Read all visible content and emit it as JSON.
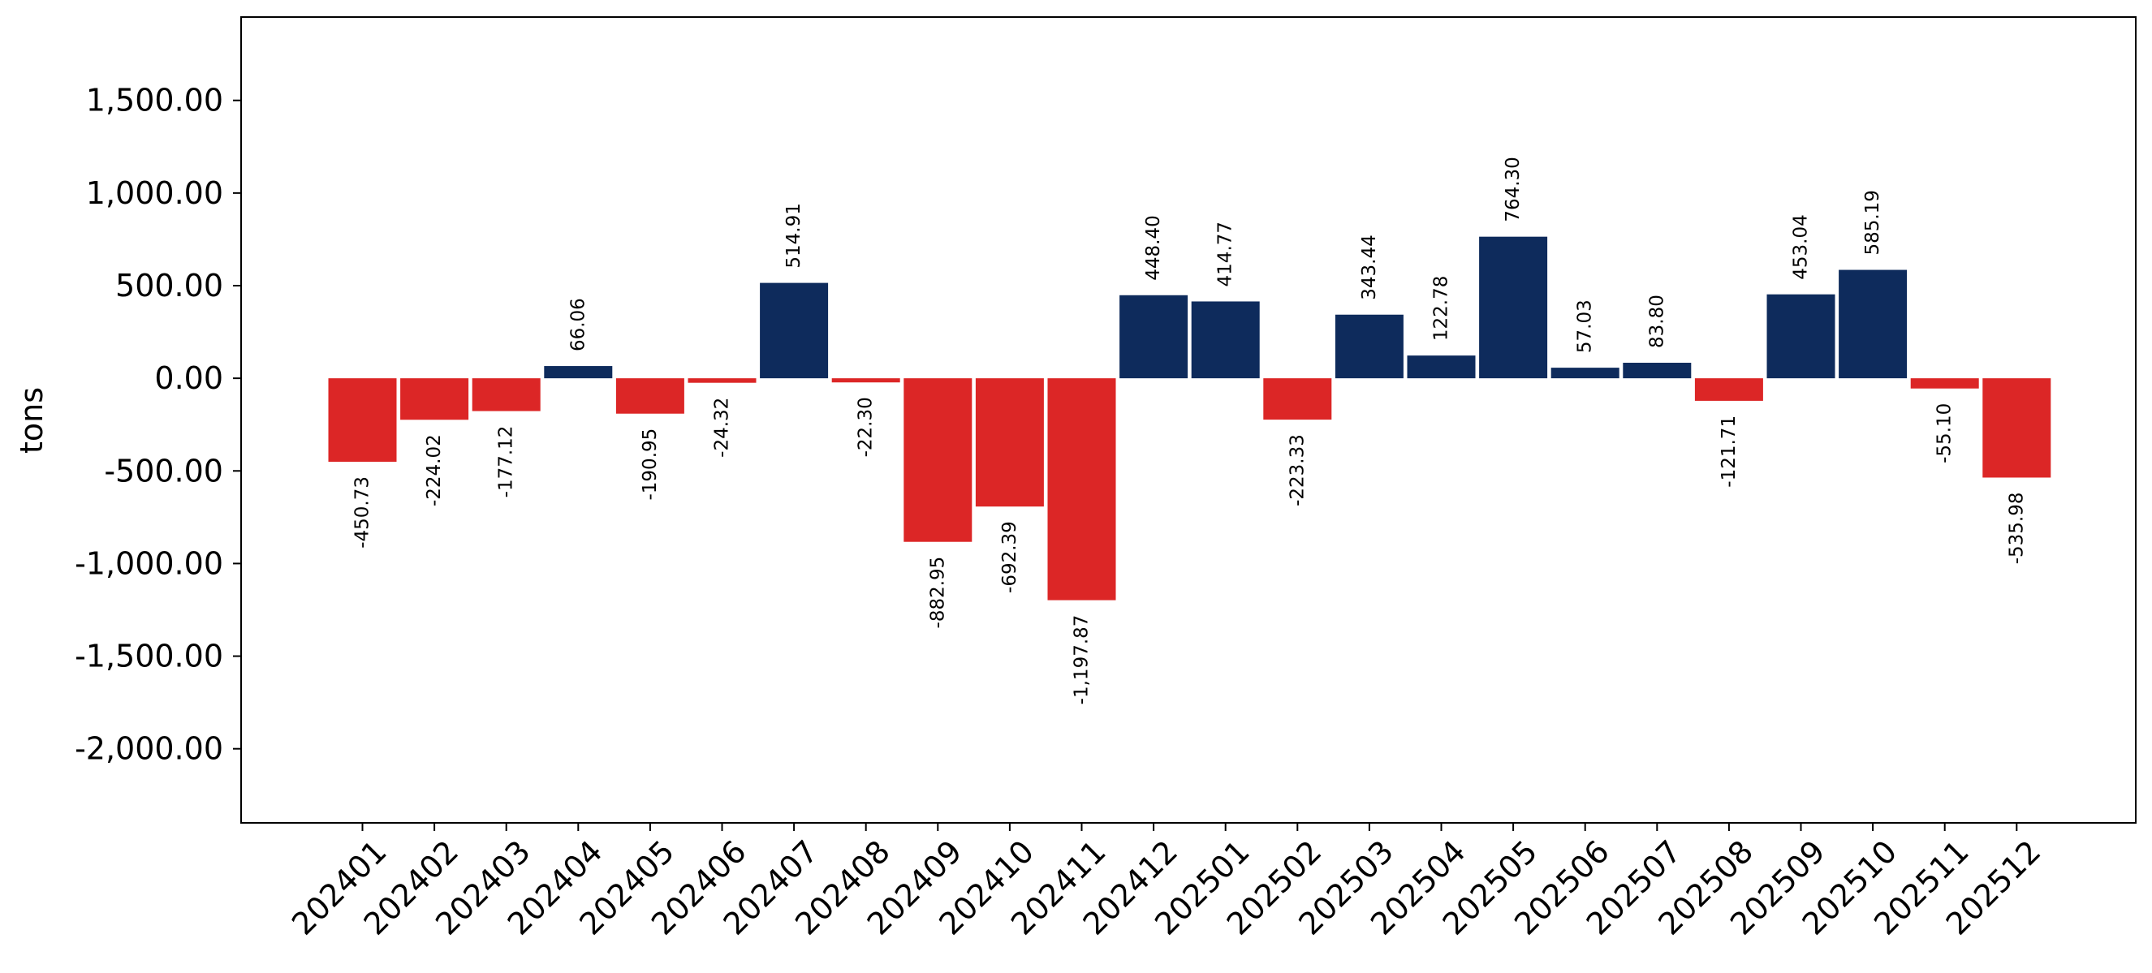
{
  "chart_data": {
    "type": "bar",
    "ylabel": "tons",
    "ylim": [
      -2400,
      1950
    ],
    "yticks": [
      1500,
      1000,
      500,
      0,
      -500,
      -1000,
      -1500,
      -2000
    ],
    "ytick_labels": [
      "1,500.00",
      "1,000.00",
      "500.00",
      "0.00",
      "-500.00",
      "-1,000.00",
      "-1,500.00",
      "-2,000.00"
    ],
    "categories": [
      "202401",
      "202402",
      "202403",
      "202404",
      "202405",
      "202406",
      "202407",
      "202408",
      "202409",
      "202410",
      "202411",
      "202412",
      "202501",
      "202502",
      "202503",
      "202504",
      "202505",
      "202506",
      "202507",
      "202508",
      "202509",
      "202510",
      "202511",
      "202512"
    ],
    "values": [
      -450.73,
      -224.02,
      -177.12,
      66.06,
      -190.95,
      -24.32,
      514.91,
      -22.3,
      -882.95,
      -692.39,
      -1197.87,
      448.4,
      414.77,
      -223.33,
      343.44,
      122.78,
      764.3,
      57.03,
      83.8,
      -121.71,
      453.04,
      585.19,
      -55.1,
      -535.98
    ],
    "value_labels": [
      "-450.73",
      "-224.02",
      "-177.12",
      "66.06",
      "-190.95",
      "-24.32",
      "514.91",
      "-22.30",
      "-882.95",
      "-692.39",
      "-1,197.87",
      "448.40",
      "414.77",
      "-223.33",
      "343.44",
      "122.78",
      "764.30",
      "57.03",
      "83.80",
      "-121.71",
      "453.04",
      "585.19",
      "-55.10",
      "-535.98"
    ],
    "colors": {
      "positive": "#0e2b5c",
      "negative": "#dc2626"
    },
    "grid": false,
    "legend": "none"
  }
}
